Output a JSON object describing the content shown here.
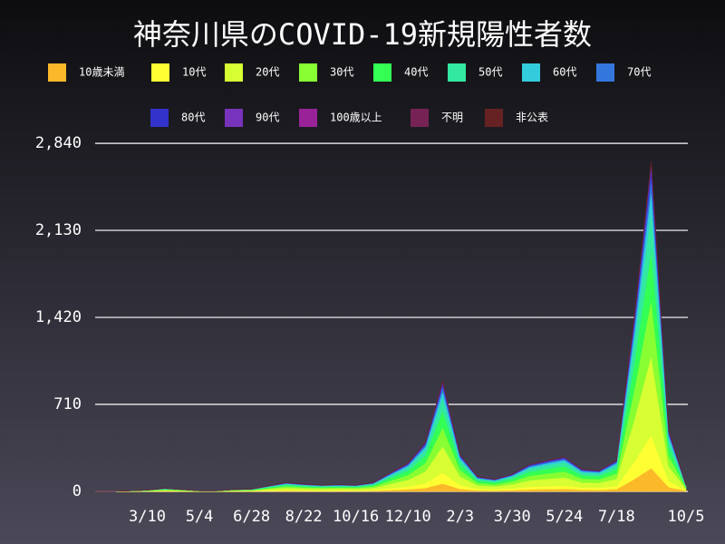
{
  "chart_data": {
    "type": "stacked-area",
    "title": "神奈川県のCOVID-19新規陽性者数",
    "categories": [
      null,
      null,
      null,
      "3/10",
      null,
      null,
      "5/4",
      null,
      null,
      "6/28",
      null,
      null,
      "8/22",
      null,
      null,
      "10/16",
      null,
      null,
      "12/10",
      null,
      null,
      "2/3",
      null,
      null,
      "3/30",
      null,
      null,
      "5/24",
      null,
      null,
      "7/18",
      null,
      null,
      null,
      "10/5"
    ],
    "ylim": [
      0,
      2900
    ],
    "yticks": [
      0,
      710,
      {
        "value": 1420,
        "label": "1,420"
      },
      {
        "value": 2130,
        "label": "2,130"
      },
      {
        "value": 2840,
        "label": "2,840"
      }
    ],
    "grid": true,
    "series": [
      {
        "name": "10歳未満",
        "color": "#fbb829",
        "values": [
          0,
          0,
          0,
          1,
          2,
          1,
          0,
          0,
          1,
          1,
          3,
          5,
          4,
          4,
          4,
          4,
          5,
          11,
          16,
          28,
          63,
          21,
          8,
          7,
          10,
          15,
          18,
          20,
          13,
          12,
          18,
          98,
          189,
          35,
          4
        ]
      },
      {
        "name": "10代",
        "color": "#ffff33",
        "values": [
          0,
          0,
          1,
          1,
          3,
          2,
          1,
          1,
          2,
          2,
          5,
          7,
          6,
          5,
          6,
          5,
          7,
          15,
          23,
          40,
          90,
          30,
          12,
          10,
          14,
          22,
          25,
          28,
          18,
          17,
          25,
          140,
          270,
          50,
          5
        ]
      },
      {
        "name": "20代",
        "color": "#d7ff33",
        "values": [
          0,
          1,
          1,
          2,
          6,
          4,
          1,
          1,
          4,
          5,
          11,
          17,
          14,
          12,
          13,
          12,
          17,
          36,
          55,
          96,
          216,
          72,
          29,
          24,
          34,
          53,
          60,
          67,
          43,
          41,
          60,
          336,
          648,
          120,
          12
        ]
      },
      {
        "name": "30代",
        "color": "#88ff33",
        "values": [
          0,
          0,
          1,
          2,
          4,
          3,
          1,
          1,
          3,
          3,
          8,
          12,
          10,
          9,
          9,
          9,
          12,
          26,
          39,
          68,
          153,
          51,
          20,
          17,
          24,
          37,
          43,
          48,
          31,
          29,
          43,
          238,
          459,
          85,
          9
        ]
      },
      {
        "name": "40代",
        "color": "#33ff55",
        "values": [
          0,
          0,
          1,
          2,
          4,
          2,
          1,
          1,
          2,
          3,
          7,
          11,
          9,
          8,
          8,
          8,
          11,
          23,
          35,
          60,
          135,
          45,
          18,
          15,
          21,
          33,
          38,
          42,
          27,
          26,
          38,
          210,
          405,
          75,
          8
        ]
      },
      {
        "name": "50代",
        "color": "#33e8a0",
        "values": [
          0,
          0,
          1,
          1,
          3,
          2,
          1,
          1,
          2,
          2,
          5,
          8,
          7,
          6,
          7,
          6,
          8,
          18,
          28,
          48,
          108,
          36,
          14,
          12,
          17,
          26,
          30,
          34,
          22,
          20,
          30,
          168,
          324,
          60,
          6
        ]
      },
      {
        "name": "60代",
        "color": "#33ccdd",
        "values": [
          0,
          0,
          0,
          1,
          1,
          1,
          0,
          0,
          1,
          1,
          3,
          4,
          4,
          3,
          3,
          3,
          4,
          9,
          14,
          24,
          54,
          18,
          7,
          6,
          8,
          13,
          15,
          17,
          11,
          10,
          15,
          84,
          162,
          30,
          3
        ]
      },
      {
        "name": "70代",
        "color": "#3377dd",
        "values": [
          0,
          0,
          0,
          0,
          1,
          0,
          0,
          0,
          0,
          1,
          2,
          3,
          2,
          2,
          2,
          2,
          3,
          6,
          9,
          16,
          36,
          12,
          5,
          4,
          6,
          9,
          10,
          11,
          7,
          7,
          10,
          56,
          108,
          20,
          2
        ]
      },
      {
        "name": "80代",
        "color": "#3333cc",
        "values": [
          0,
          0,
          0,
          0,
          1,
          0,
          0,
          0,
          0,
          1,
          1,
          2,
          2,
          2,
          2,
          2,
          2,
          5,
          7,
          12,
          27,
          9,
          4,
          3,
          4,
          7,
          8,
          8,
          5,
          5,
          8,
          42,
          81,
          15,
          1
        ]
      },
      {
        "name": "90代",
        "color": "#7733bb",
        "values": [
          0,
          0,
          0,
          0,
          0,
          0,
          0,
          0,
          0,
          0,
          0,
          1,
          1,
          0,
          1,
          0,
          1,
          2,
          2,
          4,
          9,
          3,
          1,
          1,
          1,
          2,
          3,
          3,
          2,
          2,
          3,
          14,
          27,
          5,
          0
        ]
      },
      {
        "name": "100歳以上",
        "color": "#992299",
        "values": [
          0,
          0,
          0,
          0,
          0,
          0,
          0,
          0,
          0,
          0,
          0,
          0,
          0,
          0,
          0,
          0,
          0,
          0,
          0,
          0,
          1,
          0,
          0,
          0,
          0,
          0,
          0,
          0,
          0,
          0,
          0,
          0,
          1,
          0,
          0
        ]
      },
      {
        "name": "不明",
        "color": "#772255",
        "values": [
          0,
          0,
          0,
          0,
          0,
          0,
          0,
          0,
          0,
          0,
          0,
          0,
          1,
          0,
          0,
          0,
          1,
          1,
          2,
          2,
          5,
          2,
          1,
          0,
          1,
          1,
          1,
          1,
          1,
          1,
          1,
          5,
          10,
          2,
          0
        ]
      },
      {
        "name": "非公表",
        "color": "#662222",
        "values": [
          0,
          0,
          0,
          0,
          0,
          0,
          0,
          0,
          0,
          0,
          0,
          0,
          0,
          0,
          0,
          0,
          0,
          1,
          1,
          2,
          4,
          1,
          0,
          0,
          0,
          1,
          1,
          1,
          0,
          0,
          1,
          5,
          9,
          2,
          0
        ]
      }
    ]
  }
}
